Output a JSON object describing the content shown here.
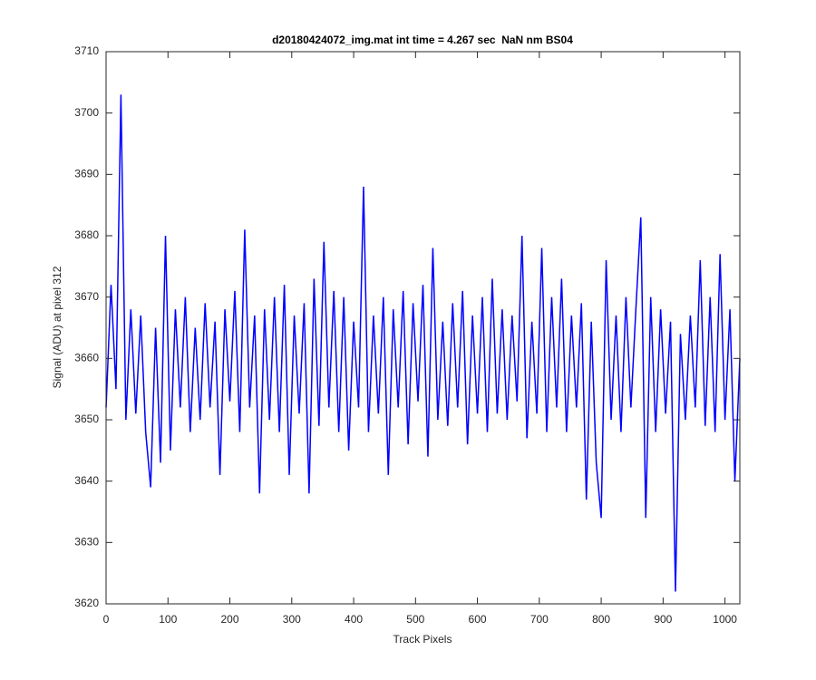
{
  "chart_data": {
    "type": "line",
    "title": "d20180424072_img.mat int time = 4.267 sec  NaN nm BS04",
    "xlabel": "Track Pixels",
    "ylabel": "Signal (ADU) at pixel 312",
    "x": [
      0,
      8,
      16,
      24,
      32,
      40,
      48,
      56,
      64,
      72,
      80,
      88,
      96,
      104,
      112,
      120,
      128,
      136,
      144,
      152,
      160,
      168,
      176,
      184,
      192,
      200,
      208,
      216,
      224,
      232,
      240,
      248,
      256,
      264,
      272,
      280,
      288,
      296,
      304,
      312,
      320,
      328,
      336,
      344,
      352,
      360,
      368,
      376,
      384,
      392,
      400,
      408,
      416,
      424,
      432,
      440,
      448,
      456,
      464,
      472,
      480,
      488,
      496,
      504,
      512,
      520,
      528,
      536,
      544,
      552,
      560,
      568,
      576,
      584,
      592,
      600,
      608,
      616,
      624,
      632,
      640,
      648,
      656,
      664,
      672,
      680,
      688,
      696,
      704,
      712,
      720,
      728,
      736,
      744,
      752,
      760,
      768,
      776,
      784,
      792,
      800,
      808,
      816,
      824,
      832,
      840,
      848,
      856,
      864,
      872,
      880,
      888,
      896,
      904,
      912,
      920,
      928,
      936,
      944,
      952,
      960,
      968,
      976,
      984,
      992,
      1000,
      1008,
      1016,
      1024
    ],
    "series": [
      {
        "color": "#0000ff",
        "values": [
          3652,
          3672,
          3655,
          3703,
          3650,
          3668,
          3651,
          3667,
          3648,
          3639,
          3665,
          3643,
          3680,
          3645,
          3668,
          3652,
          3670,
          3648,
          3665,
          3650,
          3669,
          3652,
          3666,
          3641,
          3668,
          3653,
          3671,
          3648,
          3681,
          3652,
          3667,
          3638,
          3668,
          3650,
          3670,
          3648,
          3672,
          3641,
          3667,
          3651,
          3669,
          3638,
          3673,
          3649,
          3679,
          3652,
          3671,
          3648,
          3670,
          3645,
          3666,
          3652,
          3688,
          3648,
          3667,
          3651,
          3670,
          3641,
          3668,
          3652,
          3671,
          3646,
          3669,
          3653,
          3672,
          3644,
          3678,
          3650,
          3666,
          3649,
          3669,
          3652,
          3671,
          3646,
          3667,
          3651,
          3670,
          3648,
          3673,
          3651,
          3668,
          3650,
          3667,
          3653,
          3680,
          3647,
          3666,
          3651,
          3678,
          3648,
          3670,
          3652,
          3673,
          3648,
          3667,
          3652,
          3669,
          3637,
          3666,
          3643,
          3634,
          3676,
          3650,
          3667,
          3648,
          3670,
          3652,
          3668,
          3683,
          3634,
          3670,
          3648,
          3668,
          3651,
          3666,
          3622,
          3664,
          3650,
          3667,
          3652,
          3676,
          3649,
          3670,
          3648,
          3677,
          3650,
          3668,
          3640,
          3660
        ]
      }
    ],
    "xlim": [
      0,
      1024
    ],
    "ylim": [
      3620,
      3710
    ],
    "xticks": [
      0,
      100,
      200,
      300,
      400,
      500,
      600,
      700,
      800,
      900,
      1000
    ],
    "yticks": [
      3620,
      3630,
      3640,
      3650,
      3660,
      3670,
      3680,
      3690,
      3700,
      3710
    ]
  }
}
